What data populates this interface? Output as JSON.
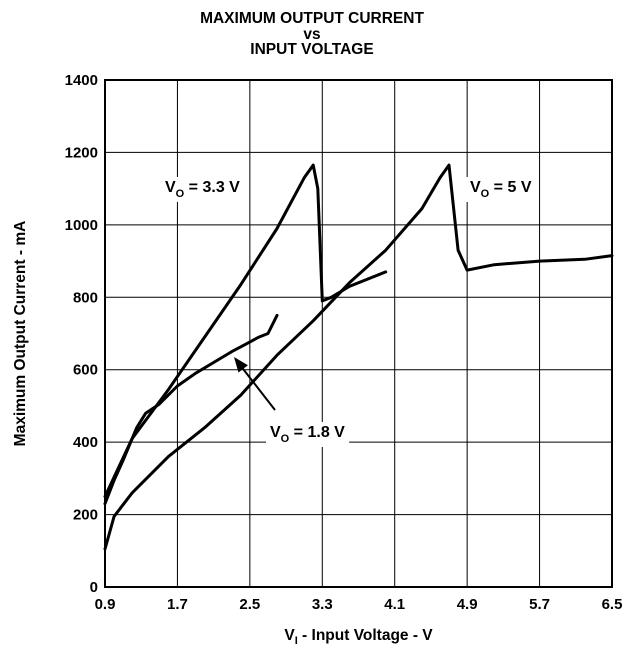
{
  "chart_data": {
    "type": "line",
    "title": [
      "MAXIMUM OUTPUT CURRENT",
      "vs",
      "INPUT VOLTAGE"
    ],
    "xlabel": {
      "main": "V",
      "sub": "I",
      "rest": " - Input Voltage - V"
    },
    "ylabel": "Maximum Output Current - mA",
    "xlim": [
      0.9,
      6.5
    ],
    "ylim": [
      0,
      1400
    ],
    "xticks": [
      "0.9",
      "1.7",
      "2.5",
      "3.3",
      "4.1",
      "4.9",
      "5.7",
      "6.5"
    ],
    "yticks": [
      "0",
      "200",
      "400",
      "600",
      "800",
      "1000",
      "1200",
      "1400"
    ],
    "grid": true,
    "series": [
      {
        "name": "V_O = 3.3 V",
        "points": [
          [
            0.9,
            250
          ],
          [
            1.2,
            410
          ],
          [
            1.6,
            545
          ],
          [
            2.0,
            690
          ],
          [
            2.4,
            835
          ],
          [
            2.8,
            990
          ],
          [
            3.1,
            1130
          ],
          [
            3.2,
            1165
          ],
          [
            3.25,
            1100
          ],
          [
            3.3,
            790
          ],
          [
            3.4,
            800
          ],
          [
            3.6,
            830
          ],
          [
            4.0,
            870
          ]
        ]
      },
      {
        "name": "V_O = 5 V",
        "points": [
          [
            0.9,
            105
          ],
          [
            1.0,
            195
          ],
          [
            1.2,
            260
          ],
          [
            1.6,
            360
          ],
          [
            2.0,
            440
          ],
          [
            2.4,
            530
          ],
          [
            2.8,
            640
          ],
          [
            3.2,
            735
          ],
          [
            3.6,
            840
          ],
          [
            4.0,
            930
          ],
          [
            4.4,
            1045
          ],
          [
            4.6,
            1130
          ],
          [
            4.7,
            1165
          ],
          [
            4.8,
            930
          ],
          [
            4.9,
            875
          ],
          [
            5.2,
            890
          ],
          [
            5.7,
            900
          ],
          [
            6.2,
            905
          ],
          [
            6.5,
            915
          ]
        ]
      },
      {
        "name": "V_O = 1.8 V",
        "points": [
          [
            0.9,
            230
          ],
          [
            1.0,
            295
          ],
          [
            1.1,
            350
          ],
          [
            1.25,
            440
          ],
          [
            1.35,
            480
          ],
          [
            1.5,
            505
          ],
          [
            1.7,
            555
          ],
          [
            1.9,
            590
          ],
          [
            2.1,
            620
          ],
          [
            2.3,
            650
          ],
          [
            2.45,
            670
          ],
          [
            2.6,
            690
          ],
          [
            2.7,
            700
          ],
          [
            2.8,
            750
          ]
        ]
      }
    ],
    "annotations": [
      {
        "label": "V_O = 3.3 V",
        "main": "V",
        "sub": "O",
        "rest": " = 3.3 V"
      },
      {
        "label": "V_O = 5 V",
        "main": "V",
        "sub": "O",
        "rest": " = 5 V"
      },
      {
        "label": "V_O = 1.8 V",
        "main": "V",
        "sub": "O",
        "rest": " = 1.8 V"
      }
    ]
  }
}
